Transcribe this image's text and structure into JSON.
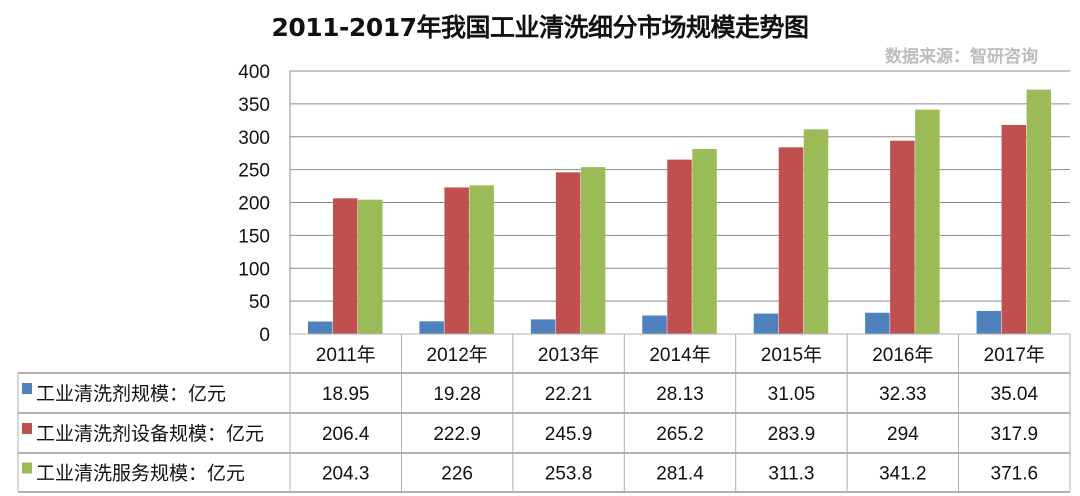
{
  "chart_data": {
    "type": "bar",
    "title": "2011-2017年我国工业清洗细分市场规模走势图",
    "source": "数据来源：智研咨询",
    "categories": [
      "2011年",
      "2012年",
      "2013年",
      "2014年",
      "2015年",
      "2016年",
      "2017年"
    ],
    "ylim": [
      0,
      400
    ],
    "yticks": [
      0,
      50,
      100,
      150,
      200,
      250,
      300,
      350,
      400
    ],
    "grid": true,
    "legend": "data-table-left",
    "series": [
      {
        "name": "工业清洗剂规模：亿元",
        "color": "#4f81bd",
        "values": [
          18.95,
          19.28,
          22.21,
          28.13,
          31.05,
          32.33,
          35.04
        ],
        "labels": [
          "18.95",
          "19.28",
          "22.21",
          "28.13",
          "31.05",
          "32.33",
          "35.04"
        ]
      },
      {
        "name": "工业清洗剂设备规模：亿元",
        "color": "#c0504d",
        "values": [
          206.4,
          222.9,
          245.9,
          265.2,
          283.9,
          294,
          317.9
        ],
        "labels": [
          "206.4",
          "222.9",
          "245.9",
          "265.2",
          "283.9",
          "294",
          "317.9"
        ]
      },
      {
        "name": "工业清洗服务规模：亿元",
        "color": "#9bbb59",
        "values": [
          204.3,
          226,
          253.8,
          281.4,
          311.3,
          341.2,
          371.6
        ],
        "labels": [
          "204.3",
          "226",
          "253.8",
          "281.4",
          "311.3",
          "341.2",
          "371.6"
        ]
      }
    ]
  }
}
